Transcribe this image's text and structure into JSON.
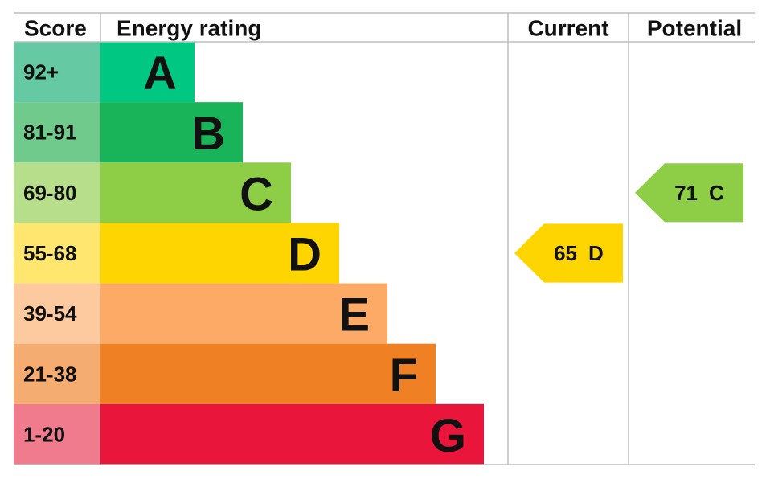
{
  "chart_data": {
    "type": "epc",
    "headers": {
      "score": "Score",
      "rating": "Energy rating",
      "current": "Current",
      "potential": "Potential"
    },
    "bands": [
      {
        "range": "92+",
        "letter": "A",
        "color": "#00c781",
        "score_color": "#65c9a4"
      },
      {
        "range": "81-91",
        "letter": "B",
        "color": "#19b459",
        "score_color": "#6fca8c"
      },
      {
        "range": "69-80",
        "letter": "C",
        "color": "#8dce46",
        "score_color": "#b6de8b"
      },
      {
        "range": "55-68",
        "letter": "D",
        "color": "#ffd500",
        "score_color": "#ffe66f"
      },
      {
        "range": "39-54",
        "letter": "E",
        "color": "#fcaa65",
        "score_color": "#fdcaa0"
      },
      {
        "range": "21-38",
        "letter": "F",
        "color": "#ef8023",
        "score_color": "#f4ac71"
      },
      {
        "range": "1-20",
        "letter": "G",
        "color": "#e9153b",
        "score_color": "#f07b8d"
      }
    ],
    "current": {
      "value": 65,
      "letter": "D"
    },
    "potential": {
      "value": 71,
      "letter": "C"
    }
  }
}
